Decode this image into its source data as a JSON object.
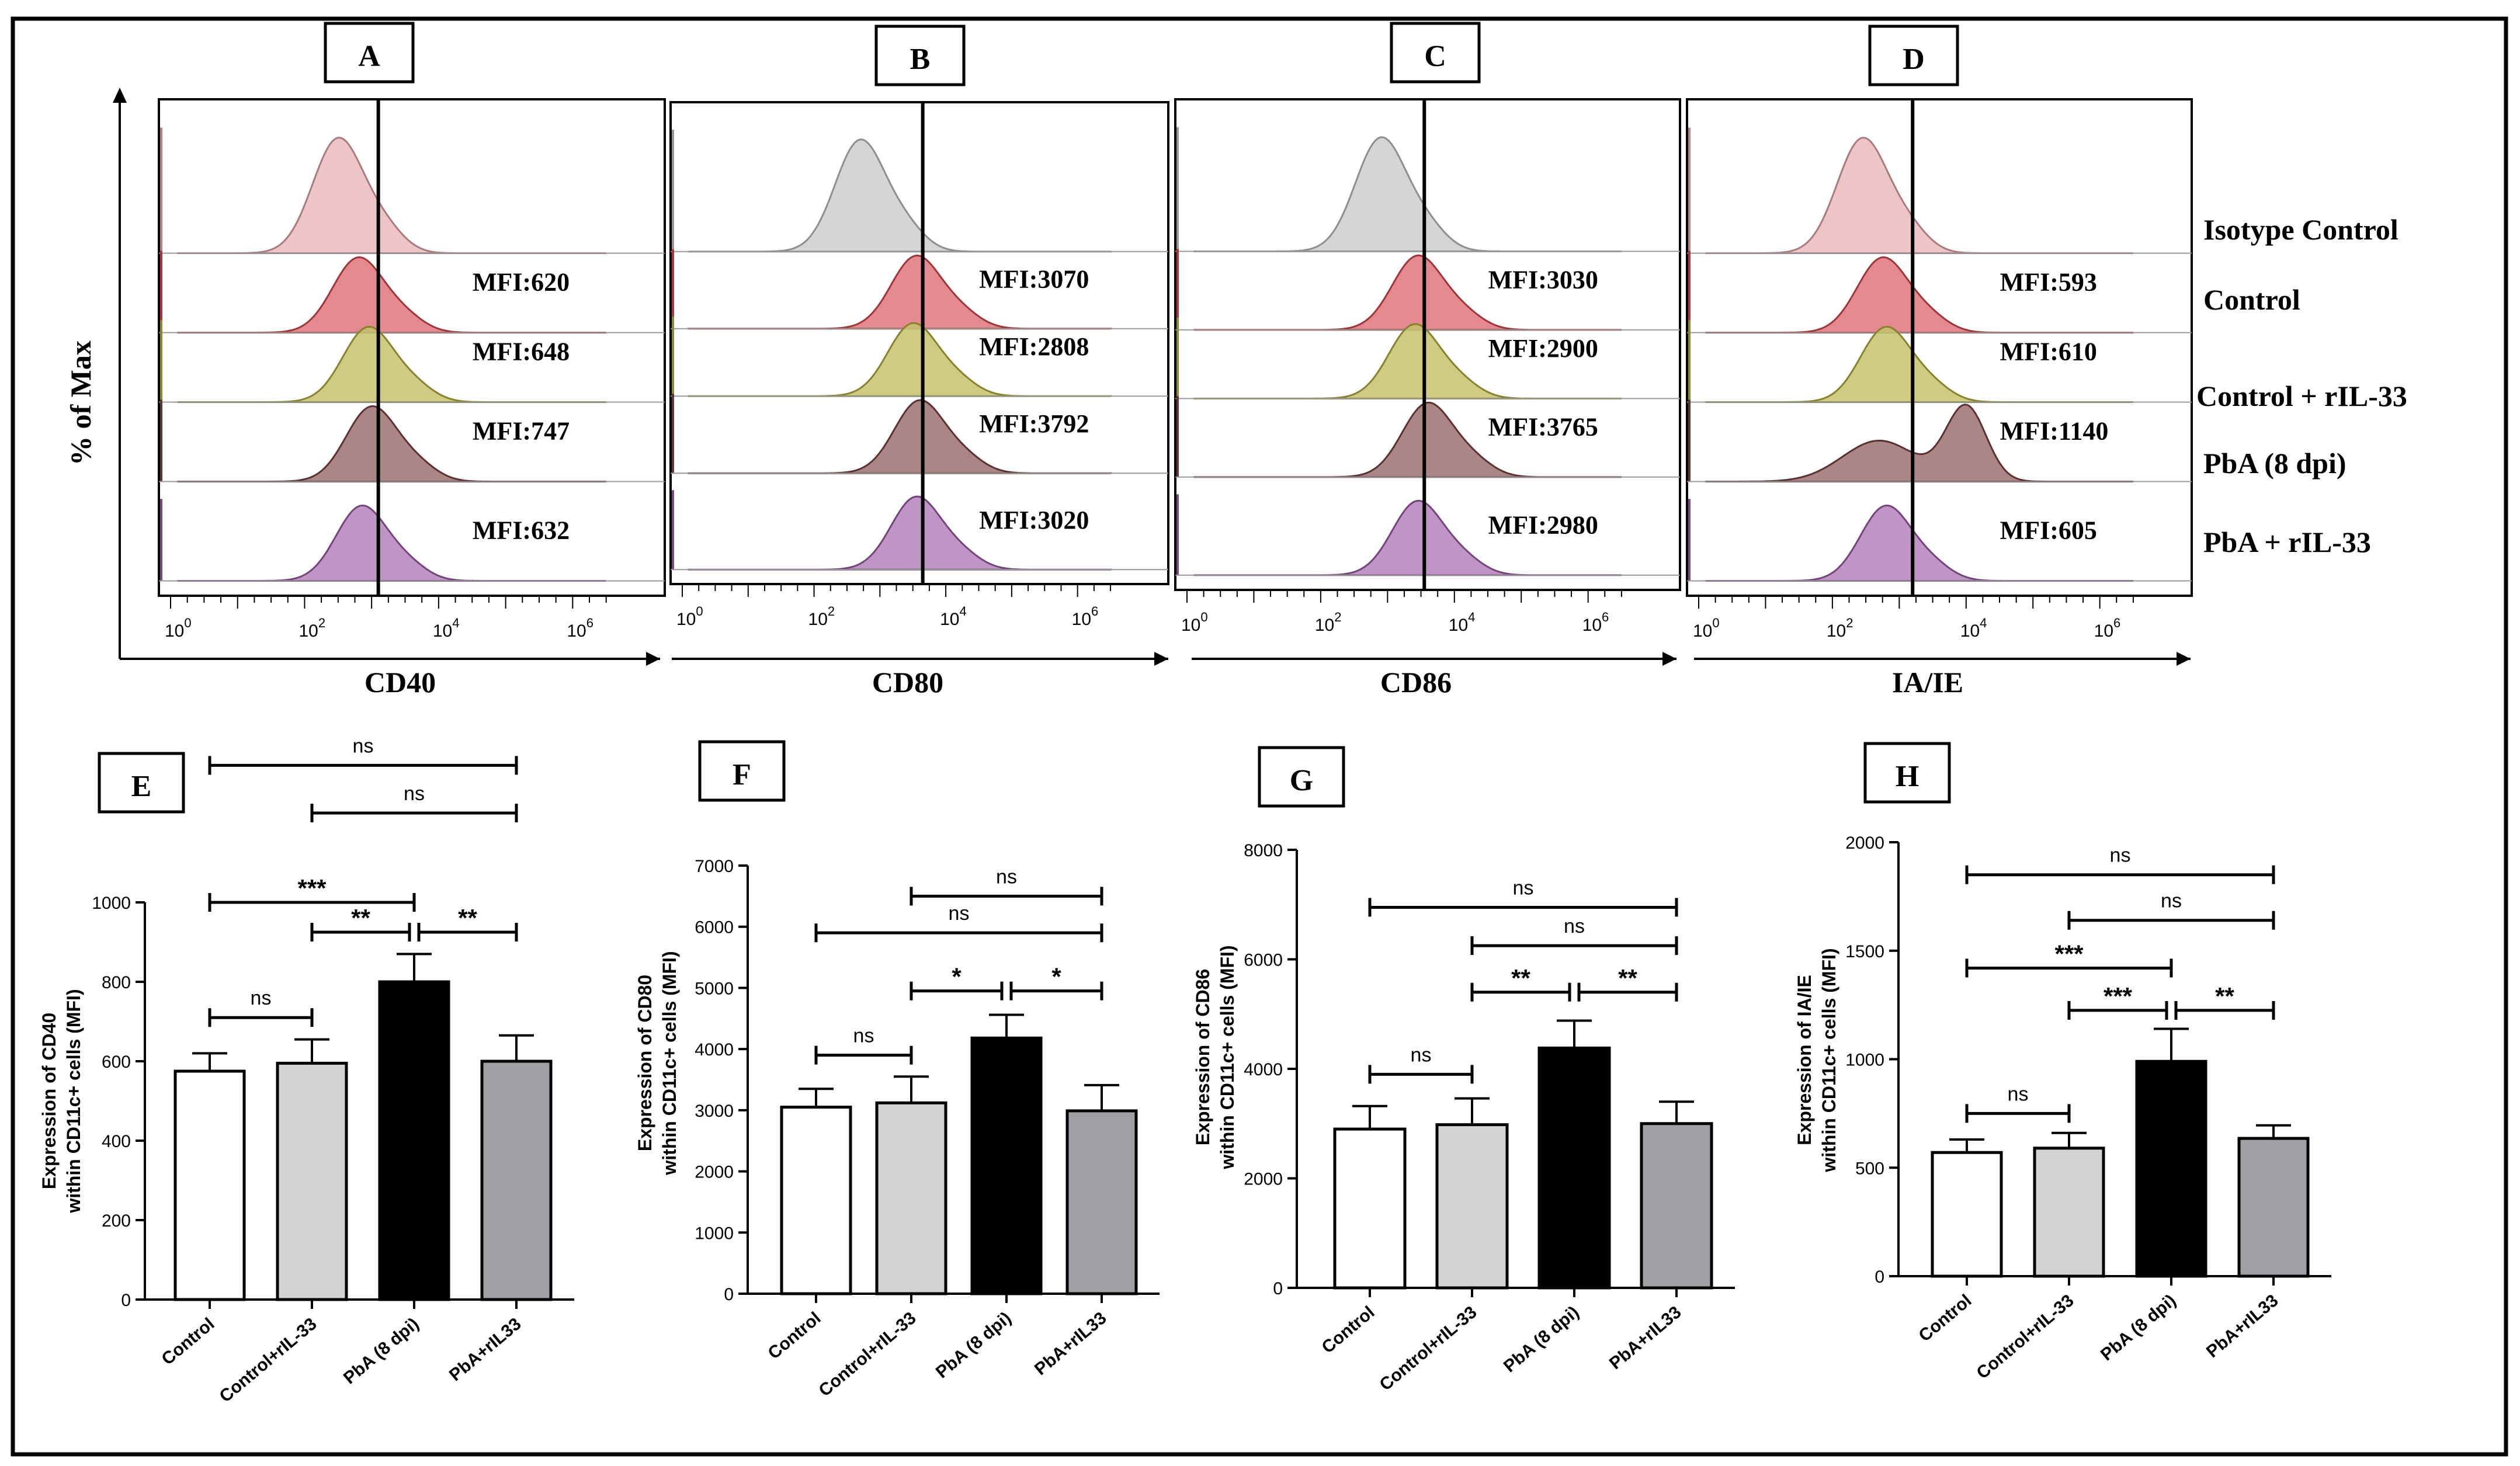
{
  "chart_data": [
    {
      "type": "histogram",
      "panel": "A",
      "xlabel": "CD40",
      "ylabel": "% of Max",
      "x_scale": "log10",
      "x_ticks": [
        "10^0",
        "10^2",
        "10^4",
        "10^6"
      ],
      "rows": [
        {
          "name": "Isotype Control",
          "mfi": "",
          "peak_log": 2.5,
          "color": "#e3a4a8"
        },
        {
          "name": "Control",
          "mfi": "MFI:620",
          "peak_log": 2.8,
          "color": "#d4464d"
        },
        {
          "name": "Control + rIL-33",
          "mfi": "MFI:648",
          "peak_log": 2.95,
          "color": "#b2ad3c"
        },
        {
          "name": "PbA (8 dpi)",
          "mfi": "MFI:747",
          "peak_log": 3.0,
          "color": "#7a4141"
        },
        {
          "name": "PbA + rIL-33",
          "mfi": "MFI:632",
          "peak_log": 2.85,
          "color": "#9a5aa3"
        }
      ],
      "marker_log": 3.1
    },
    {
      "type": "histogram",
      "panel": "B",
      "xlabel": "CD80",
      "x_scale": "log10",
      "x_ticks": [
        "10^0",
        "10^2",
        "10^4",
        "10^6"
      ],
      "rows": [
        {
          "name": "Isotype Control",
          "mfi": "",
          "peak_log": 2.7,
          "color": "#bdbdbd"
        },
        {
          "name": "Control",
          "mfi": "MFI:3070",
          "peak_log": 3.55,
          "color": "#d4464d"
        },
        {
          "name": "Control + rIL-33",
          "mfi": "MFI:2808",
          "peak_log": 3.5,
          "color": "#b2ad3c"
        },
        {
          "name": "PbA (8 dpi)",
          "mfi": "MFI:3792",
          "peak_log": 3.6,
          "color": "#7a4141"
        },
        {
          "name": "PbA + rIL-33",
          "mfi": "MFI:3020",
          "peak_log": 3.55,
          "color": "#9a5aa3"
        }
      ],
      "marker_log": 3.65
    },
    {
      "type": "histogram",
      "panel": "C",
      "xlabel": "CD86",
      "x_scale": "log10",
      "x_ticks": [
        "10^0",
        "10^2",
        "10^4",
        "10^6"
      ],
      "rows": [
        {
          "name": "Isotype Control",
          "mfi": "",
          "peak_log": 2.9,
          "color": "#bdbdbd"
        },
        {
          "name": "Control",
          "mfi": "MFI:3030",
          "peak_log": 3.45,
          "color": "#d4464d"
        },
        {
          "name": "Control + rIL-33",
          "mfi": "MFI:2900",
          "peak_log": 3.4,
          "color": "#b2ad3c"
        },
        {
          "name": "PbA (8 dpi)",
          "mfi": "MFI:3765",
          "peak_log": 3.6,
          "color": "#7a4141"
        },
        {
          "name": "PbA + rIL-33",
          "mfi": "MFI:2980",
          "peak_log": 3.45,
          "color": "#9a5aa3"
        }
      ],
      "marker_log": 3.55
    },
    {
      "type": "histogram",
      "panel": "D",
      "xlabel": "IA/IE",
      "x_scale": "log10",
      "x_ticks": [
        "10^0",
        "10^2",
        "10^4",
        "10^6"
      ],
      "rows": [
        {
          "name": "Isotype Control",
          "mfi": "",
          "peak_log": 2.45,
          "color": "#e3a4a8"
        },
        {
          "name": "Control",
          "mfi": "MFI:593",
          "peak_log": 2.75,
          "color": "#d4464d"
        },
        {
          "name": "Control + rIL-33",
          "mfi": "MFI:610",
          "peak_log": 2.8,
          "color": "#b2ad3c"
        },
        {
          "name": "PbA (8 dpi)",
          "mfi": "MFI:1140",
          "peak_log": 4.0,
          "color": "#7a4141"
        },
        {
          "name": "PbA + rIL-33",
          "mfi": "MFI:605",
          "peak_log": 2.8,
          "color": "#9a5aa3"
        }
      ],
      "marker_log": 3.2
    },
    {
      "type": "bar",
      "panel": "E",
      "ylabel": "Expression of CD40 within CD11c+ cells (MFI)",
      "ylim": [
        0,
        1000
      ],
      "yticks": [
        0,
        200,
        400,
        600,
        800,
        1000
      ],
      "categories": [
        "Control",
        "Control+rIL-33",
        "PbA (8 dpi)",
        "PbA+rIL33"
      ],
      "values": [
        575,
        595,
        800,
        600
      ],
      "errors": [
        45,
        60,
        70,
        65
      ],
      "colors": [
        "#ffffff",
        "#d3d3d3",
        "#000000",
        "#a0a0a4"
      ],
      "comparisons": [
        {
          "from": 0,
          "to": 1,
          "level": 710,
          "label": "ns"
        },
        {
          "from": 0,
          "to": 2,
          "level": 1000,
          "label": "***"
        },
        {
          "from": 1,
          "to": 2,
          "level": 925,
          "label": "**"
        },
        {
          "from": 2,
          "to": 3,
          "level": 925,
          "label": "**"
        },
        {
          "from": 1,
          "to": 3,
          "level": 1225,
          "label": "ns"
        },
        {
          "from": 0,
          "to": 3,
          "level": 1345,
          "label": "ns"
        }
      ]
    },
    {
      "type": "bar",
      "panel": "F",
      "ylabel": "Expression of CD80 within CD11c+ cells (MFI)",
      "ylim": [
        0,
        7000
      ],
      "yticks": [
        0,
        1000,
        2000,
        3000,
        4000,
        5000,
        6000,
        7000
      ],
      "categories": [
        "Control",
        "Control+rIL-33",
        "PbA (8 dpi)",
        "PbA+rIL33"
      ],
      "values": [
        3050,
        3120,
        4180,
        2990
      ],
      "errors": [
        300,
        430,
        380,
        420
      ],
      "colors": [
        "#ffffff",
        "#d3d3d3",
        "#000000",
        "#a0a0a4"
      ],
      "comparisons": [
        {
          "from": 0,
          "to": 1,
          "level": 3900,
          "label": "ns"
        },
        {
          "from": 1,
          "to": 2,
          "level": 4950,
          "label": "*"
        },
        {
          "from": 2,
          "to": 3,
          "level": 4950,
          "label": "*"
        },
        {
          "from": 0,
          "to": 3,
          "level": 5900,
          "label": "ns"
        },
        {
          "from": 1,
          "to": 3,
          "level": 6500,
          "label": "ns"
        }
      ]
    },
    {
      "type": "bar",
      "panel": "G",
      "ylabel": "Expression of CD86 within CD11c+ cells (MFI)",
      "ylim": [
        0,
        8000
      ],
      "yticks": [
        0,
        2000,
        4000,
        6000,
        8000
      ],
      "categories": [
        "Control",
        "Control+rIL-33",
        "PbA (8 dpi)",
        "PbA+rIL33"
      ],
      "values": [
        2900,
        2980,
        4380,
        3000
      ],
      "errors": [
        420,
        480,
        500,
        400
      ],
      "colors": [
        "#ffffff",
        "#d3d3d3",
        "#000000",
        "#a0a0a4"
      ],
      "comparisons": [
        {
          "from": 0,
          "to": 1,
          "level": 3900,
          "label": "ns"
        },
        {
          "from": 1,
          "to": 2,
          "level": 5400,
          "label": "**"
        },
        {
          "from": 2,
          "to": 3,
          "level": 5400,
          "label": "**"
        },
        {
          "from": 1,
          "to": 3,
          "level": 6250,
          "label": "ns"
        },
        {
          "from": 0,
          "to": 3,
          "level": 6950,
          "label": "ns"
        }
      ]
    },
    {
      "type": "bar",
      "panel": "H",
      "ylabel": "Expression of IA/IE within CD11c+ cells (MFI)",
      "ylim": [
        0,
        2000
      ],
      "yticks": [
        0,
        500,
        1000,
        1500,
        2000
      ],
      "categories": [
        "Control",
        "Control+rIL-33",
        "PbA (8 dpi)",
        "PbA+rIL33"
      ],
      "values": [
        570,
        590,
        990,
        635
      ],
      "errors": [
        60,
        70,
        150,
        60
      ],
      "colors": [
        "#ffffff",
        "#d3d3d3",
        "#000000",
        "#a0a0a4"
      ],
      "comparisons": [
        {
          "from": 0,
          "to": 1,
          "level": 750,
          "label": "ns"
        },
        {
          "from": 1,
          "to": 2,
          "level": 1225,
          "label": "***"
        },
        {
          "from": 2,
          "to": 3,
          "level": 1225,
          "label": "**"
        },
        {
          "from": 0,
          "to": 2,
          "level": 1420,
          "label": "***"
        },
        {
          "from": 1,
          "to": 3,
          "level": 1640,
          "label": "ns"
        },
        {
          "from": 0,
          "to": 3,
          "level": 1850,
          "label": "ns"
        }
      ]
    }
  ]
}
